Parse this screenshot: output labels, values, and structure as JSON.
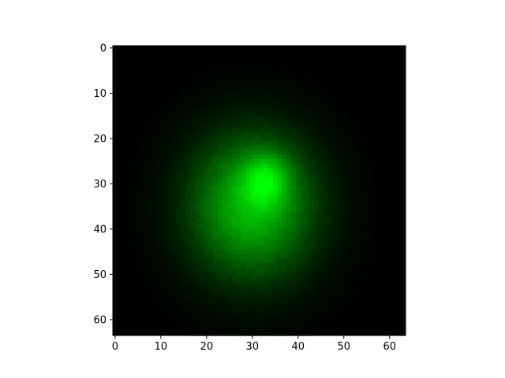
{
  "chart_data": {
    "type": "heatmap",
    "title": "",
    "xlabel": "",
    "ylabel": "",
    "grid_size": [
      64,
      64
    ],
    "xlim": [
      -0.5,
      63.5
    ],
    "ylim": [
      63.5,
      -0.5
    ],
    "y_axis_inverted": true,
    "grid": false,
    "colormap": "black-to-green",
    "x_ticks": [
      0,
      10,
      20,
      30,
      40,
      50,
      60
    ],
    "y_ticks": [
      0,
      10,
      20,
      30,
      40,
      50,
      60
    ],
    "x_tick_labels": [
      "0",
      "10",
      "20",
      "30",
      "40",
      "50",
      "60"
    ],
    "y_tick_labels": [
      "0",
      "10",
      "20",
      "30",
      "40",
      "50",
      "60"
    ],
    "blobs": [
      {
        "cx": 30,
        "cy": 35,
        "sx": 9.5,
        "sy": 11,
        "amp": 0.74
      },
      {
        "cx": 33,
        "cy": 29,
        "sx": 3.5,
        "sy": 4,
        "amp": 0.42
      }
    ],
    "peak": {
      "x": 33,
      "y": 30,
      "value": 1.0
    }
  },
  "colors": {
    "background": "#ffffff",
    "image_min": "#000000",
    "image_max": "#00ff00",
    "axis": "#000000"
  }
}
